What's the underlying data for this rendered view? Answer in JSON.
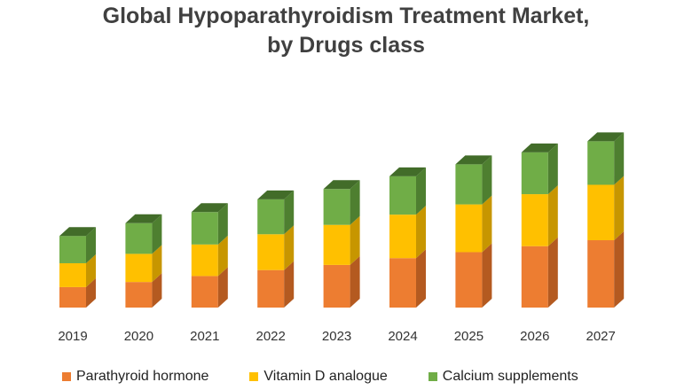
{
  "chart_data": {
    "type": "bar",
    "stacked": true,
    "title_lines": [
      "Global Hypoparathyroidism Treatment Market,",
      "by Drugs class"
    ],
    "categories": [
      "2019",
      "2020",
      "2021",
      "2022",
      "2023",
      "2024",
      "2025",
      "2026",
      "2027"
    ],
    "series": [
      {
        "name": "Parathyroid hormone",
        "values": [
          24,
          30,
          37,
          44,
          50,
          58,
          65,
          72,
          79
        ],
        "color": "#ED7D31",
        "side_color": "#B45A20"
      },
      {
        "name": "Vitamin D analogue",
        "values": [
          28,
          33,
          37,
          42,
          47,
          51,
          56,
          61,
          65
        ],
        "color": "#FFC000",
        "side_color": "#C79600"
      },
      {
        "name": "Calcium supplements",
        "values": [
          32,
          36,
          38,
          41,
          42,
          45,
          47,
          49,
          51
        ],
        "color": "#70AD47",
        "side_color": "#4E7F30"
      }
    ],
    "ylim": [
      0,
      210
    ],
    "grid": false,
    "legend_position": "bottom",
    "xlabel": "",
    "ylabel": ""
  }
}
